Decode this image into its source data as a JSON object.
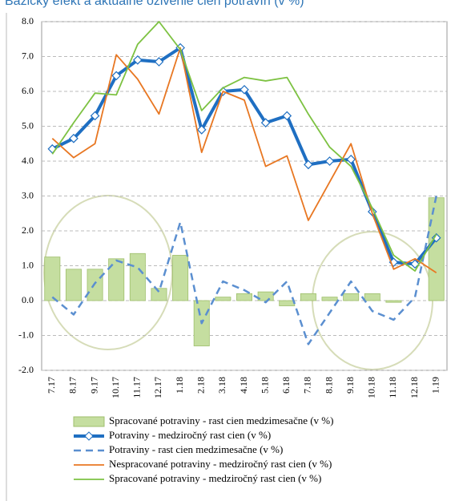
{
  "chart_data": {
    "type": "bar",
    "title": "Bazický efekt a aktuálne oživenie cien potravín (v %)",
    "categories": [
      "7.17",
      "8.17",
      "9.17",
      "10.17",
      "11.17",
      "12.17",
      "1.18",
      "2.18",
      "3.18",
      "4.18",
      "5.18",
      "6.18",
      "7.18",
      "8.18",
      "9.18",
      "10.18",
      "11.18",
      "12.18",
      "1.19"
    ],
    "ylim": [
      -2,
      8
    ],
    "yticks": [
      {
        "value": -2,
        "label": "-2.0"
      },
      {
        "value": -1,
        "label": "-1.0"
      },
      {
        "value": 0,
        "label": "0.0"
      },
      {
        "value": 1,
        "label": "1.0"
      },
      {
        "value": 2,
        "label": "2.0"
      },
      {
        "value": 3,
        "label": "3.0"
      },
      {
        "value": 4,
        "label": "4.0"
      },
      {
        "value": 5,
        "label": "5.0"
      },
      {
        "value": 6,
        "label": "6.0"
      },
      {
        "value": 7,
        "label": "7.0"
      },
      {
        "value": 8,
        "label": "8.0"
      }
    ],
    "grid": true,
    "series": [
      {
        "name": "Spracované potraviny - rast cien medzimesačne (v %)",
        "type": "bar",
        "color": "#c5dea0",
        "values": [
          1.25,
          0.9,
          0.9,
          1.2,
          1.35,
          0.35,
          1.3,
          -1.3,
          0.1,
          0.2,
          0.25,
          -0.15,
          0.2,
          0.1,
          0.2,
          0.2,
          -0.05,
          0.0,
          2.95
        ]
      },
      {
        "name": "Potraviny - medziročný rast cien (v %)",
        "type": "line",
        "color": "#1f6fc2",
        "width": 4,
        "marker": "diamond",
        "values": [
          4.35,
          4.65,
          5.3,
          6.45,
          6.9,
          6.85,
          7.25,
          4.9,
          6.0,
          6.05,
          5.1,
          5.3,
          3.9,
          4.0,
          4.05,
          2.55,
          1.1,
          1.05,
          1.8
        ]
      },
      {
        "name": "Potraviny - rast cien medzimesačne (v %)",
        "type": "line",
        "color": "#5b8fd0",
        "width": 2.5,
        "dash": true,
        "values": [
          0.1,
          -0.4,
          0.5,
          1.15,
          0.95,
          0.25,
          2.25,
          -0.65,
          0.55,
          0.3,
          -0.05,
          0.55,
          -1.25,
          -0.35,
          0.55,
          -0.3,
          -0.55,
          0.1,
          3.0
        ]
      },
      {
        "name": "Nespracované potraviny - medziročný rast cien (v %)",
        "type": "line",
        "color": "#e87722",
        "width": 1.8,
        "values": [
          4.65,
          4.1,
          4.5,
          7.05,
          6.35,
          5.35,
          7.25,
          4.25,
          6.0,
          5.75,
          3.85,
          4.15,
          2.3,
          3.4,
          4.5,
          2.5,
          0.9,
          1.2,
          0.8
        ]
      },
      {
        "name": "Spracované potraviny - medziročný rast cien (v %)",
        "type": "line",
        "color": "#7dc242",
        "width": 1.8,
        "values": [
          4.2,
          5.1,
          5.95,
          5.9,
          7.35,
          8.0,
          7.2,
          5.45,
          6.1,
          6.4,
          6.3,
          6.4,
          5.35,
          4.4,
          3.85,
          2.65,
          1.3,
          0.85,
          1.9
        ]
      }
    ]
  }
}
